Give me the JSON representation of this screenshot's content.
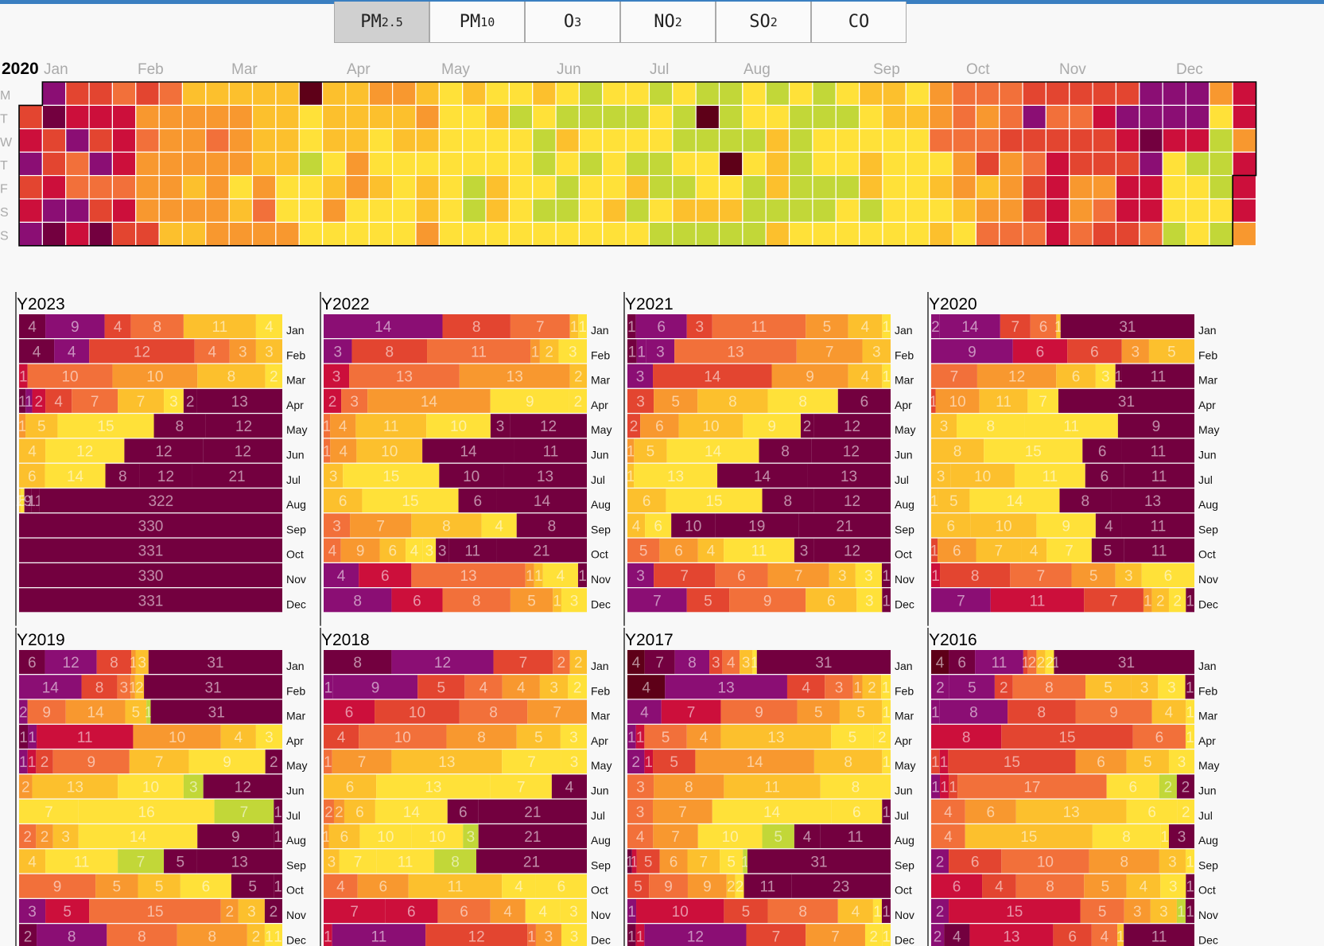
{
  "tabs": [
    {
      "base": "PM",
      "sub": "2.5",
      "active": true
    },
    {
      "base": "PM",
      "sub": "10",
      "active": false
    },
    {
      "base": "O",
      "sub": "3",
      "active": false
    },
    {
      "base": "NO",
      "sub": "2",
      "active": false
    },
    {
      "base": "SO",
      "sub": "2",
      "active": false
    },
    {
      "base": "CO",
      "sub": "",
      "active": false
    }
  ],
  "palette": [
    "#5e0018",
    "#73003f",
    "#8b0e74",
    "#cc0f3b",
    "#e34530",
    "#f2703a",
    "#f8982f",
    "#fcc02d",
    "#ffe139",
    "#c2d738",
    "#86c04a",
    "#36ac5a",
    "#15937a",
    "#dcdcdc"
  ],
  "chart_data": {
    "heatmap": {
      "type": "heatmap",
      "year_label": "2020",
      "months": [
        "Jan",
        "Feb",
        "Mar",
        "Apr",
        "May",
        "Jun",
        "Jul",
        "Aug",
        "Sep",
        "Oct",
        "Nov",
        "Dec"
      ],
      "weekdays": [
        "M",
        "T",
        "W",
        "T",
        "F",
        "S",
        "S"
      ],
      "weeks": [
        "N4324321",
        "2144321",
        "4325523",
        "4342541",
        "5333534",
        "4656664",
        "5666667",
        "7666767",
        "7656666",
        "7666876",
        "7777656",
        "7777886",
        "0889888",
        "7778768",
        "7776688",
        "6788788",
        "6778888",
        "7678776",
        "8888888",
        "7888998",
        "8788778",
        "8988888",
        "7899898",
        "8978998",
        "9989888",
        "8988878",
        "8989798",
        "9889989",
        "8998979",
        "9098879",
        "9990879",
        "8898999",
        "9877797",
        "8999998",
        "9988998",
        "8988988",
        "7887798",
        "7788888",
        "8788888",
        "6658787",
        "5556678",
        "5654765",
        "5546665",
        "4245445",
        "4543333",
        "4544665",
        "4344654",
        "4234334",
        "2212335",
        "2238889",
        "2239888",
        "6899989",
        "3363336"
      ]
    },
    "monthly_distribution": {
      "type": "bar",
      "orientation": "stacked-horizontal",
      "months": [
        "Jan",
        "Feb",
        "Mar",
        "Apr",
        "May",
        "Jun",
        "Jul",
        "Aug",
        "Sep",
        "Oct",
        "Nov",
        "Dec"
      ],
      "years": [
        {
          "year": "Y2023",
          "rows": [
            "14,29,44,58,711,84",
            "14,24,412,54,63,73",
            "31,510,610,78,82",
            "11,21,32,44,57,77,83,102,113",
            "61,75,815,108,112",
            "74,812,1012,112",
            "76,814,108,112,121",
            "72,85,109,111,1322",
            "1330",
            "1331",
            "1330",
            "1331"
          ]
        },
        {
          "year": "Y2022",
          "rows": [
            "214,48,57,71,81",
            "23,48,511,61,72,83",
            "33,513,613,72",
            "32,53,614,89,82",
            "51,64,711,810,103,112",
            "51,64,710,1014,111",
            "73,815,1010,113",
            "76,815,106,114",
            "53,67,78,84,108",
            "54,69,76,84,83,103,111,121",
            "24,36,513,61,71,84,101",
            "28,36,58,65,71,83"
          ]
        },
        {
          "year": "Y2021",
          "rows": [
            "11,26,43,511,65,74,81",
            "11,21,23,513,67,73",
            "23,414,69,74,81",
            "43,65,78,88,106",
            "42,66,710,89,102,112",
            "61,75,814,108,112",
            "71,813,1014,113",
            "76,815,108,112",
            "74,86,1010,119,121",
            "55,66,74,811,103,112",
            "23,47,56,67,73,83,101",
            "27,45,59,76,83,101"
          ]
        },
        {
          "year": "Y2020",
          "rows": [
            "22,214,47,56,71,131",
            "29,36,46,63,75",
            "57,612,76,83,101,111",
            "41,610,711,87,131",
            "73,88,811,109",
            "78,815,106,111",
            "73,710,811,106,111",
            "71,75,814,108,113",
            "76,710,89,104,111",
            "41,66,77,74,87,105,111",
            "31,48,57,65,73,86",
            "27,311,47,61,72,82,101"
          ]
        },
        {
          "year": "Y2019",
          "rows": [
            "16,212,48,61,73,131",
            "214,48,53,61,72,131",
            "22,59,614,75,91,131",
            "11,21,311,610,74,83",
            "21,31,42,59,77,89,102",
            "62,713,810,93,112",
            "87,816,97,101",
            "52,62,73,814,109,101",
            "74,811,97,105,113",
            "59,65,75,86,105,101",
            "23,35,515,62,73,102",
            "12,28,58,68,72,81,81"
          ]
        },
        {
          "year": "Y2018",
          "rows": [
            "18,212,47,52,72",
            "21,29,45,54,64,73,82",
            "36,410,58,67",
            "44,510,68,75,83",
            "51,67,713,87,83",
            "76,813,87,104",
            "52,62,76,814,106,121",
            "61,76,810,810,93,121",
            "73,87,811,98,121",
            "54,66,711,84,86",
            "37,36,56,64,84,83",
            "31,211,412,51,63,83"
          ]
        },
        {
          "year": "Y2017",
          "rows": [
            "04,17,28,43,54,73,81,131",
            "04,213,44,53,61,72,81",
            "24,37,59,65,75,81",
            "21,31,55,64,713,85,82",
            "22,31,45,614,78,81",
            "53,68,711,88",
            "53,67,814,86,101",
            "54,67,810,95,104,111",
            "11,31,45,66,77,85,91,131",
            "45,59,69,72,82,111,123",
            "21,310,45,58,74,81,101",
            "11,31,212,47,67,82,81"
          ]
        },
        {
          "year": "Y2016",
          "rows": [
            "04,16,211,41,52,72,82,101,131",
            "22,25,42,58,75,73,83,101",
            "21,28,48,59,74,81",
            "38,415,56,81",
            "41,31,415,66,75,83",
            "21,31,41,517,86,92,102",
            "54,66,713,86,82",
            "54,715,88,81,103",
            "22,46,510,68,73,81",
            "36,44,58,65,74,83,101",
            "22,315,55,63,73,91,101",
            "22,14,313,46,54,71,111"
          ]
        }
      ]
    }
  }
}
